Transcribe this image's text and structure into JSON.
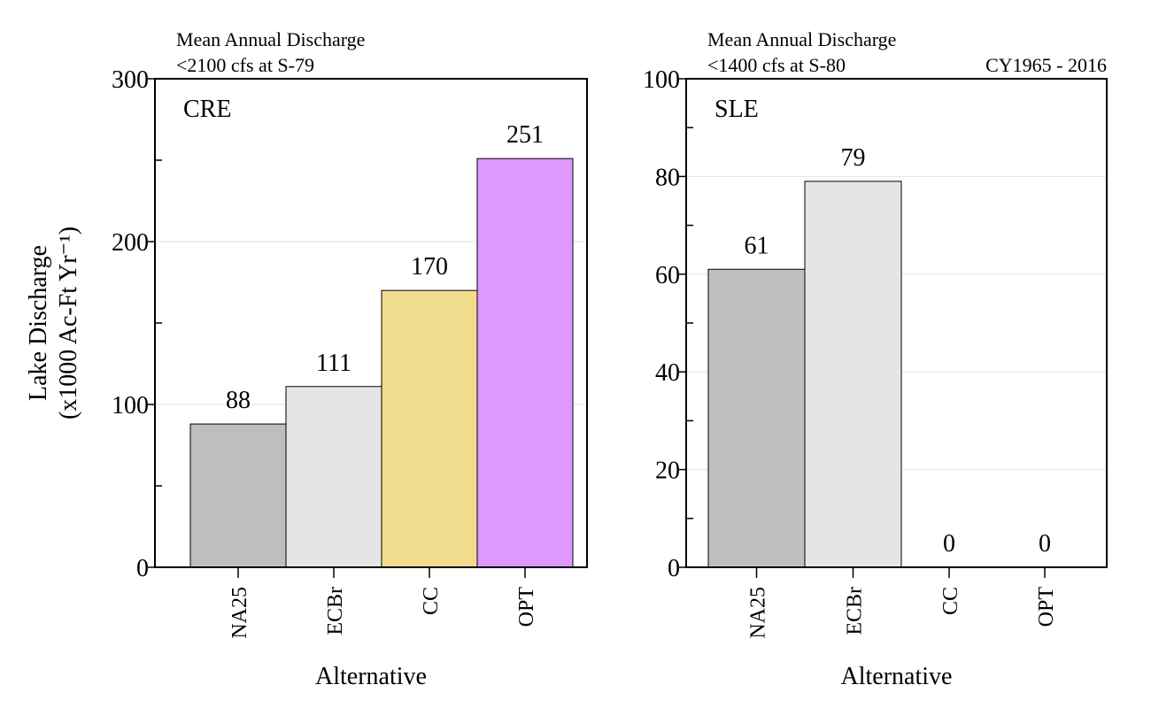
{
  "figure": {
    "ylabel_line1": "Lake Discharge",
    "ylabel_line2": "(x1000 Ac-Ft Yr⁻¹)",
    "xlabel": "Alternative",
    "period_label": "CY1965 - 2016"
  },
  "chart_data": [
    {
      "type": "bar",
      "panel_label": "CRE",
      "title": "Mean Annual Discharge",
      "subtitle": "<2100 cfs at S-79",
      "categories": [
        "NA25",
        "ECBr",
        "CC",
        "OPT"
      ],
      "values": [
        88,
        111,
        170,
        251
      ],
      "value_labels": [
        "88",
        "111",
        "170",
        "251"
      ],
      "colors": [
        "#bebebe",
        "#e5e5e5",
        "#f0dc8c",
        "#dd99fd"
      ],
      "xlabel": "Alternative",
      "ylabel": "Lake Discharge (x1000 Ac-Ft Yr⁻¹)",
      "ylim": [
        0,
        300
      ],
      "yticks": [
        0,
        100,
        200,
        300
      ],
      "y_minor_step": 50,
      "grid": true
    },
    {
      "type": "bar",
      "panel_label": "SLE",
      "title": "Mean Annual Discharge",
      "subtitle": "<1400 cfs at S-80",
      "categories": [
        "NA25",
        "ECBr",
        "CC",
        "OPT"
      ],
      "values": [
        61,
        79,
        0,
        0
      ],
      "value_labels": [
        "61",
        "79",
        "0",
        "0"
      ],
      "colors": [
        "#bebebe",
        "#e5e5e5",
        "#f0dc8c",
        "#dd99fd"
      ],
      "xlabel": "Alternative",
      "ylabel": "",
      "ylim": [
        0,
        100
      ],
      "yticks": [
        0,
        20,
        40,
        60,
        80,
        100
      ],
      "y_minor_step": 10,
      "grid": true
    }
  ]
}
